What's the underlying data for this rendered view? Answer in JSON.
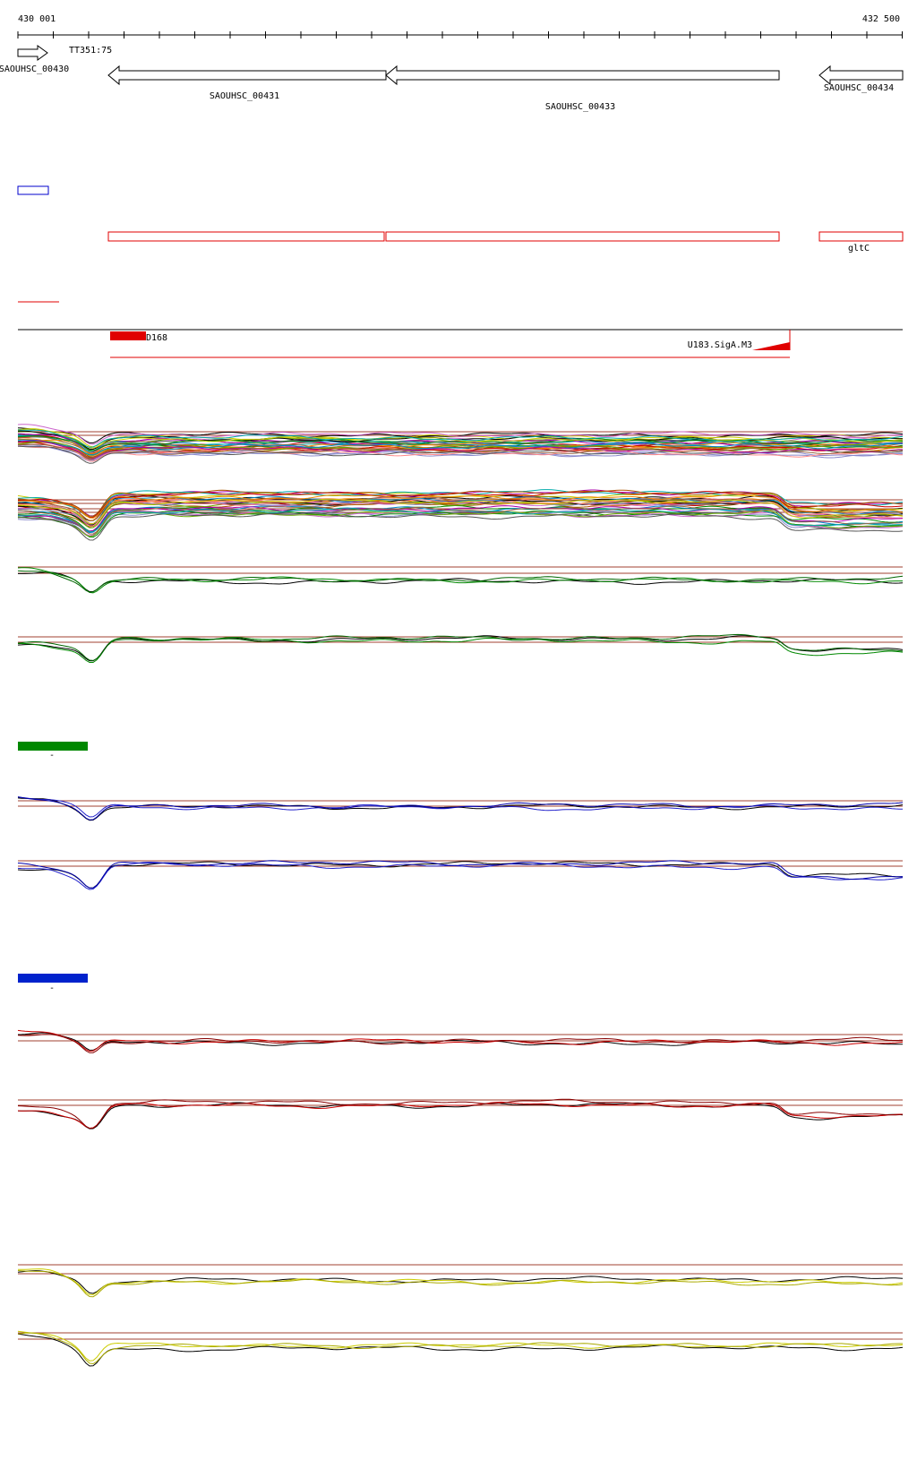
{
  "ruler": {
    "start": "430 001",
    "end": "432 500"
  },
  "features": {
    "tss": "TT351:75",
    "genes": [
      "SAOUHSC_00430",
      "SAOUHSC_00431",
      "SAOUHSC_00433",
      "SAOUHSC_00434"
    ],
    "operon_label": "gltC",
    "regulators": [
      "D168",
      "U183.SigA.M3"
    ]
  },
  "tracks": {
    "legend_marks": [
      "-",
      "-"
    ]
  }
}
